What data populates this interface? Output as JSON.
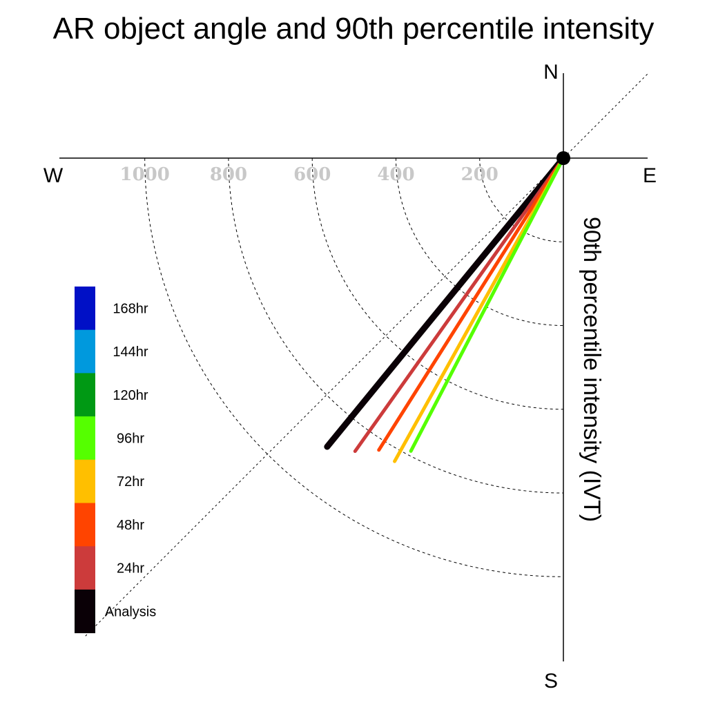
{
  "chart_data": {
    "type": "polar-vector",
    "title": "AR object angle and 90th percentile intensity",
    "ylabel": "90th percentile intensity (IVT)",
    "compass": {
      "north": "N",
      "south": "S",
      "east": "E",
      "west": "W"
    },
    "rings": [
      200,
      400,
      600,
      800,
      1000
    ],
    "ring_labels": [
      "1000",
      "800",
      "600",
      "400",
      "200"
    ],
    "reference_angle_deg": 45,
    "series": [
      {
        "name": "Analysis",
        "color": "#0a0006",
        "magnitude": 891,
        "angle_deg": 219.3,
        "width": 9
      },
      {
        "name": "24hr",
        "color": "#cc3b3b",
        "magnitude": 859,
        "angle_deg": 215.4,
        "width": 5
      },
      {
        "name": "48hr",
        "color": "#ff4400",
        "magnitude": 825,
        "angle_deg": 212.3,
        "width": 5
      },
      {
        "name": "72hr",
        "color": "#ffbf00",
        "magnitude": 829,
        "angle_deg": 209.1,
        "width": 5
      },
      {
        "name": "96hr",
        "color": "#55ff00",
        "magnitude": 789,
        "angle_deg": 207.5,
        "width": 5
      }
    ],
    "legend": [
      {
        "label": "168hr",
        "color": "#0010c6"
      },
      {
        "label": "144hr",
        "color": "#0099dd"
      },
      {
        "label": "120hr",
        "color": "#009914"
      },
      {
        "label": "96hr",
        "color": "#55ff00"
      },
      {
        "label": "72hr",
        "color": "#ffbf00"
      },
      {
        "label": "48hr",
        "color": "#ff4400"
      },
      {
        "label": "24hr",
        "color": "#cc3b3b"
      },
      {
        "label": "Analysis",
        "color": "#0a0006"
      }
    ]
  }
}
